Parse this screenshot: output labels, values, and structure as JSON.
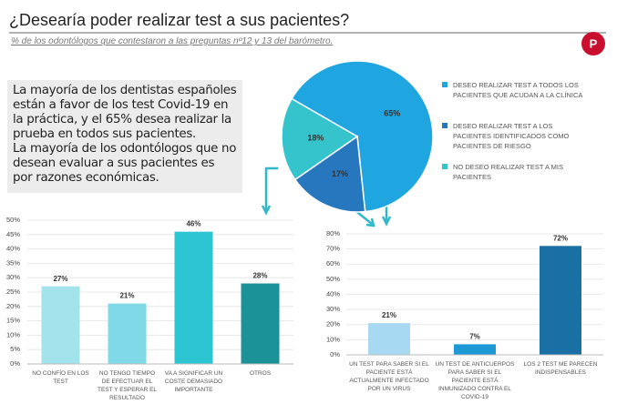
{
  "header": {
    "title": "¿Desearía poder realizar test a sus pacientes?",
    "subtitle": "% de los odontólogos que contestaron a las preguntas nº12 y 13 del barómetro."
  },
  "textbox": {
    "paragraphs": [
      "La mayoría de los dentistas españoles están a favor de los test Covid-19 en la práctica, y el 65% desea realizar la prueba en todos sus pacientes.",
      "La mayoría de los odontólogos que no desean evaluar a sus pacientes es por razones económicas."
    ]
  },
  "chart_data": [
    {
      "type": "pie",
      "categories": [
        "DESEO REALIZAR TEST A TODOS LOS PACIENTES QUE ACUDAN A LA CLÍNICA",
        "DESEO REALIZAR TEST A LOS PACIENTES IDENTIFICADOS COMO PACIENTES DE RIESGO",
        "NO DESEO REALIZAR TEST A MIS PACIENTES"
      ],
      "values": [
        65,
        17,
        18
      ],
      "value_labels": [
        "65%",
        "17%",
        "18%"
      ],
      "colors": [
        "#1fa6e0",
        "#2777be",
        "#35c4cb"
      ]
    },
    {
      "type": "bar",
      "categories": [
        "NO CONFÍO EN LOS TEST",
        "NO TENGO TIEMPO DE EFECTUAR EL TEST Y ESPERAR EL RESULTADO",
        "VA A SIGNIFICAR UN COSTE DEMASIADO IMPORTANTE",
        "OTROS"
      ],
      "values": [
        27,
        21,
        46,
        28
      ],
      "value_labels": [
        "27%",
        "21%",
        "46%",
        "28%"
      ],
      "colors": [
        "#a3e3ec",
        "#7fd9e6",
        "#2ec5d2",
        "#1b9298"
      ],
      "ylim": [
        0,
        50
      ],
      "yticks": [
        {
          "value": 0,
          "label": "0%"
        },
        {
          "value": 5,
          "label": "5%"
        },
        {
          "value": 10,
          "label": "10%"
        },
        {
          "value": 15,
          "label": "15%"
        },
        {
          "value": 20,
          "label": "20%"
        },
        {
          "value": 25,
          "label": "25%"
        },
        {
          "value": 30,
          "label": "30%"
        },
        {
          "value": 35,
          "label": "35%"
        },
        {
          "value": 40,
          "label": "40%"
        },
        {
          "value": 45,
          "label": "45%"
        },
        {
          "value": 50,
          "label": "50%"
        }
      ],
      "grid": true
    },
    {
      "type": "bar",
      "categories": [
        "UN TEST PARA SABER SI EL PACIENTE ESTÁ ACTUALMENTE INFECTADO POR UN VIRUS",
        "UN TEST DE ANTICUERPOS PARA SABER SI EL PACIENTE ESTÁ INMUNIZADO CONTRA EL COVID-19",
        "LOS 2 TEST ME PARECEN INDISPENSABLES"
      ],
      "values": [
        21,
        7,
        72
      ],
      "value_labels": [
        "21%",
        "7%",
        "72%"
      ],
      "colors": [
        "#a8d9f3",
        "#1d9ad6",
        "#1a70a4"
      ],
      "ylim": [
        0,
        80
      ],
      "yticks": [
        {
          "value": 0,
          "label": "0%"
        },
        {
          "value": 10,
          "label": "10%"
        },
        {
          "value": 20,
          "label": "20%"
        },
        {
          "value": 30,
          "label": "30%"
        },
        {
          "value": 40,
          "label": "40%"
        },
        {
          "value": 50,
          "label": "50%"
        },
        {
          "value": 60,
          "label": "60%"
        },
        {
          "value": 70,
          "label": "70%"
        },
        {
          "value": 80,
          "label": "80%"
        }
      ],
      "grid": true
    }
  ]
}
